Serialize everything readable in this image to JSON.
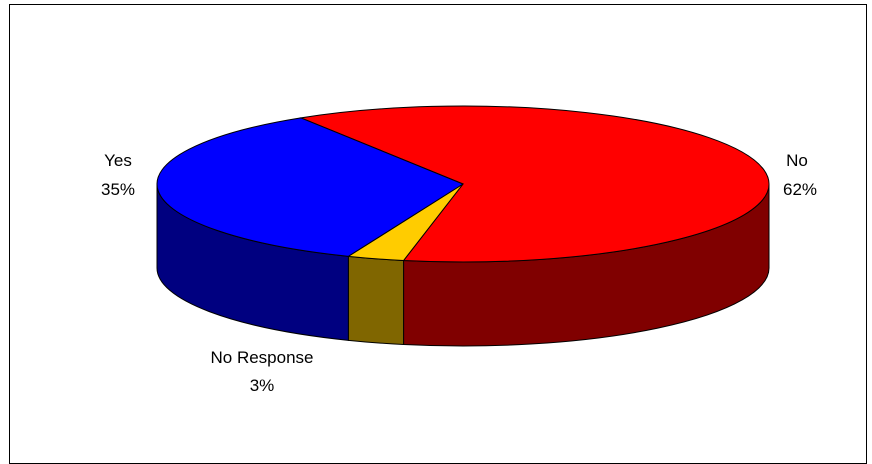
{
  "chart_data": {
    "type": "pie",
    "style": "3d-exploded-none",
    "slices": [
      {
        "label": "No",
        "value": 62,
        "value_label": "62%",
        "color": "#ff0000",
        "side_color": "#800000"
      },
      {
        "label": "No Response",
        "value": 3,
        "value_label": "3%",
        "color": "#ffcc00",
        "side_color": "#806600"
      },
      {
        "label": "Yes",
        "value": 35,
        "value_label": "35%",
        "color": "#0000ff",
        "side_color": "#000080"
      }
    ],
    "legend": "none"
  }
}
